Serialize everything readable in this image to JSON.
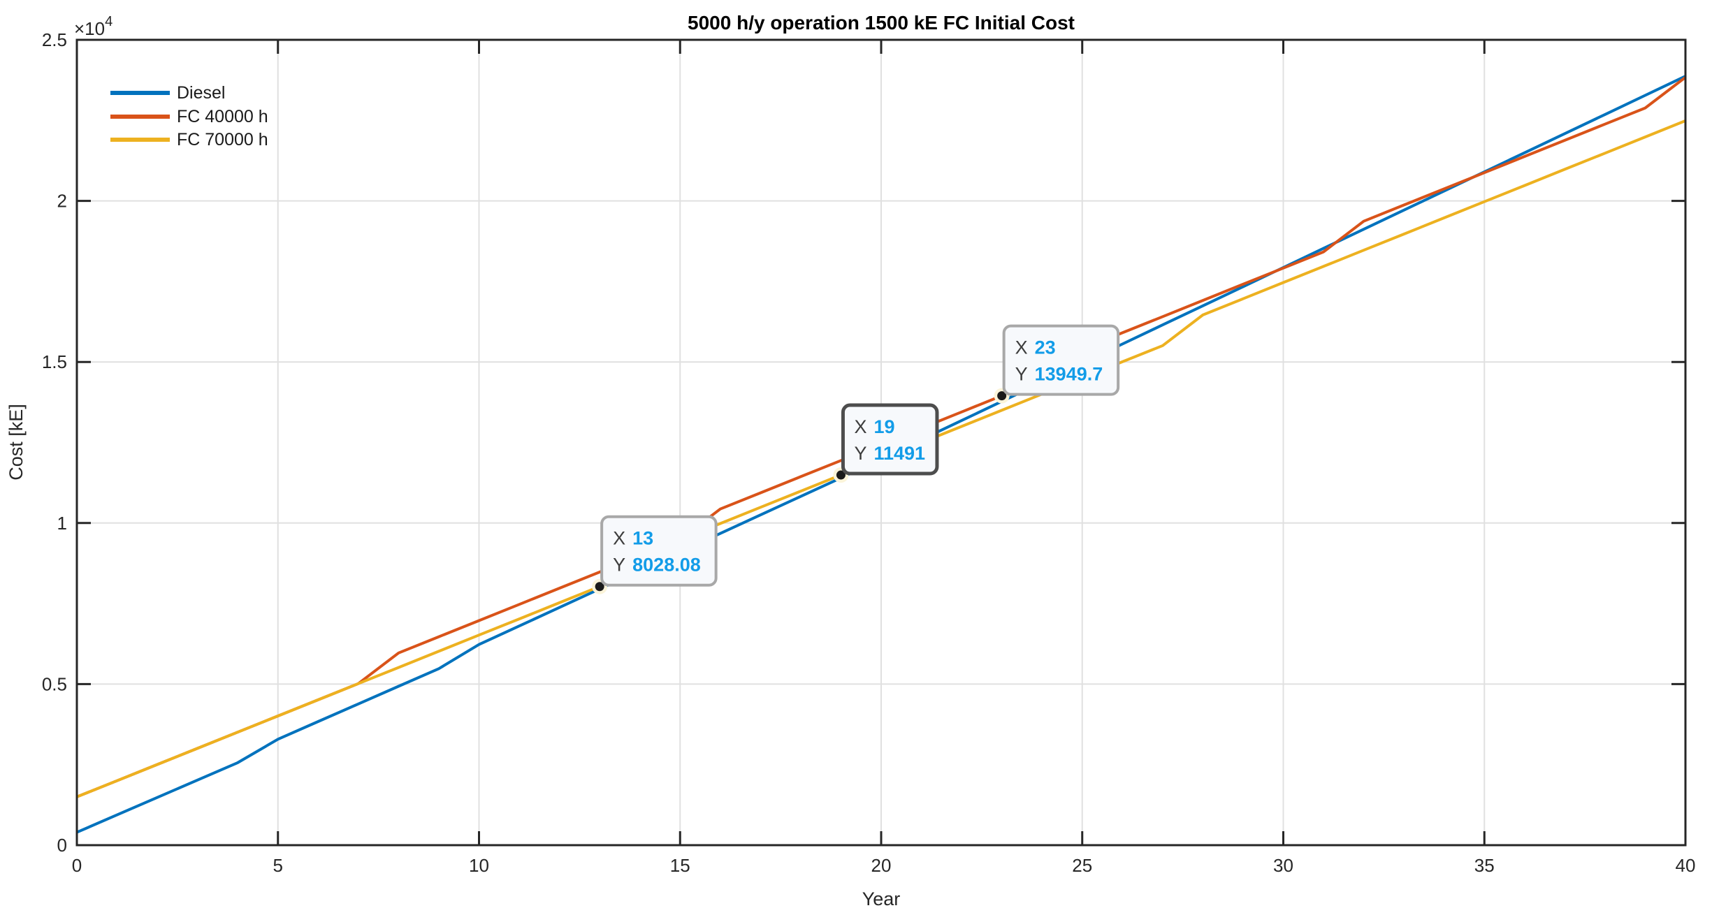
{
  "figure": {
    "title": "5000 h/y operation 1500 kE FC Initial Cost"
  },
  "axes": {
    "xlabel": "Year",
    "ylabel": "Cost [kE]",
    "y_multiplier_base": "×10",
    "y_multiplier_exp": "4",
    "x_tick_labels": [
      "0",
      "5",
      "10",
      "15",
      "20",
      "25",
      "30",
      "35",
      "40"
    ],
    "x_tick_values": [
      0,
      5,
      10,
      15,
      20,
      25,
      30,
      35,
      40
    ],
    "y_tick_labels": [
      "0",
      "0.5",
      "1",
      "1.5",
      "2",
      "2.5"
    ],
    "y_tick_values": [
      0,
      5000,
      10000,
      15000,
      20000,
      25000
    ]
  },
  "chart_data": {
    "type": "line",
    "title": "5000 h/y operation 1500 kE FC Initial Cost",
    "xlabel": "Year",
    "ylabel": "Cost [kE]",
    "xlim": [
      0,
      40
    ],
    "ylim": [
      0,
      25000
    ],
    "grid": true,
    "legend_position": "top-left",
    "x": [
      0,
      1,
      2,
      3,
      4,
      5,
      6,
      7,
      8,
      9,
      10,
      11,
      12,
      13,
      14,
      15,
      16,
      17,
      18,
      19,
      20,
      21,
      22,
      23,
      24,
      25,
      26,
      27,
      28,
      29,
      30,
      31,
      32,
      33,
      34,
      35,
      36,
      37,
      38,
      39,
      40
    ],
    "series": [
      {
        "name": "Diesel",
        "color": "#0072BD",
        "values": [
          400,
          940,
          1480,
          2020,
          2560,
          3290,
          3838,
          4385,
          4933,
          5480,
          6230,
          6804,
          7379,
          7953,
          8528,
          9102,
          9677,
          10251,
          10826,
          11400,
          11994,
          12588,
          13181,
          13775,
          14369,
          14963,
          15557,
          16151,
          16744,
          17338,
          17932,
          18526,
          19120,
          19713,
          20307,
          20901,
          21495,
          22089,
          22682,
          23276,
          23870
        ]
      },
      {
        "name": "FC 40000 h",
        "color": "#D95319",
        "values": [
          1500,
          2002,
          2504,
          3006,
          3509,
          4011,
          4513,
          5015,
          5967,
          6469,
          6972,
          7474,
          7976,
          8478,
          8980,
          9482,
          10435,
          10937,
          11439,
          11941,
          12443,
          12945,
          13447,
          13949.7,
          14902,
          15404,
          15906,
          16408,
          16910,
          17413,
          17915,
          18417,
          19369,
          19871,
          20373,
          20876,
          21378,
          21880,
          22382,
          22884,
          23836
        ]
      },
      {
        "name": "FC 70000 h",
        "color": "#EDB120",
        "values": [
          1500,
          2002,
          2504,
          3006,
          3509,
          4011,
          4513,
          5015,
          5517,
          6019,
          6522,
          7024,
          7526,
          8028.08,
          8980,
          9482,
          9985,
          10487,
          10989,
          11491,
          11993,
          12495,
          12998,
          13500,
          14002,
          14504,
          15006,
          15508,
          16460,
          16963,
          17465,
          17967,
          18469,
          18971,
          19473,
          19976,
          20478,
          20980,
          21482,
          21984,
          22486
        ]
      }
    ]
  },
  "datatips": [
    {
      "x_label": "X",
      "y_label": "Y",
      "x_value": "13",
      "y_value": "8028.08",
      "series": "FC 70000 h",
      "selected": false
    },
    {
      "x_label": "X",
      "y_label": "Y",
      "x_value": "19",
      "y_value": "11491",
      "series": "FC 70000 h",
      "selected": true
    },
    {
      "x_label": "X",
      "y_label": "Y",
      "x_value": "23",
      "y_value": "13949.7",
      "series": "FC 40000 h",
      "selected": false
    }
  ],
  "colors": {
    "axis": "#262626",
    "grid": "#E0E0E0",
    "plot_bg": "#FFFFFF",
    "datatip_bg": "#F7F9FC",
    "datatip_border": "#A8A8A8",
    "datatip_border_selected": "#4D4D4D",
    "datatip_value": "#129CE8",
    "datatip_label": "#3D3D3D",
    "marker_fill": "#1A1A1A",
    "marker_halo": "#FBF4D9"
  }
}
